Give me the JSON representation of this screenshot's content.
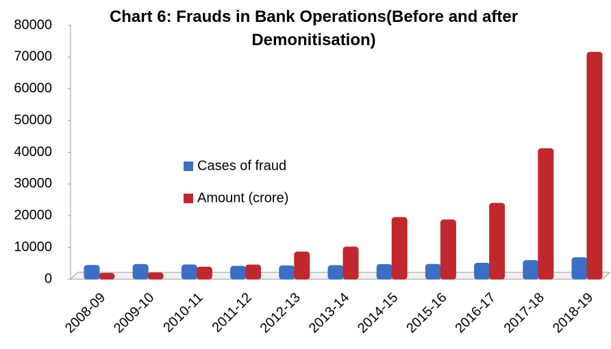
{
  "chart_data": {
    "type": "bar",
    "title": "Chart 6: Frauds in Bank Operations(Before and after Demonitisation)",
    "categories": [
      "2008-09",
      "2009-10",
      "2010-11",
      "2011-12",
      "2012-13",
      "2013-14",
      "2014-15",
      "2015-16",
      "2016-17",
      "2017-18",
      "2018-19"
    ],
    "series": [
      {
        "name": "Cases of fraud",
        "color": "#3a6fc4",
        "values": [
          4372,
          4669,
          4534,
          4093,
          4235,
          4306,
          4639,
          4693,
          5076,
          5916,
          6801
        ]
      },
      {
        "name": "Amount (crore)",
        "color": "#c0282d",
        "values": [
          1860,
          1998,
          3815,
          4491,
          8590,
          10170,
          19455,
          18698,
          23934,
          41167,
          71543
        ]
      }
    ],
    "ylim": [
      0,
      80000
    ],
    "yticks": [
      0,
      10000,
      20000,
      30000,
      40000,
      50000,
      60000,
      70000,
      80000
    ],
    "grid": false
  }
}
